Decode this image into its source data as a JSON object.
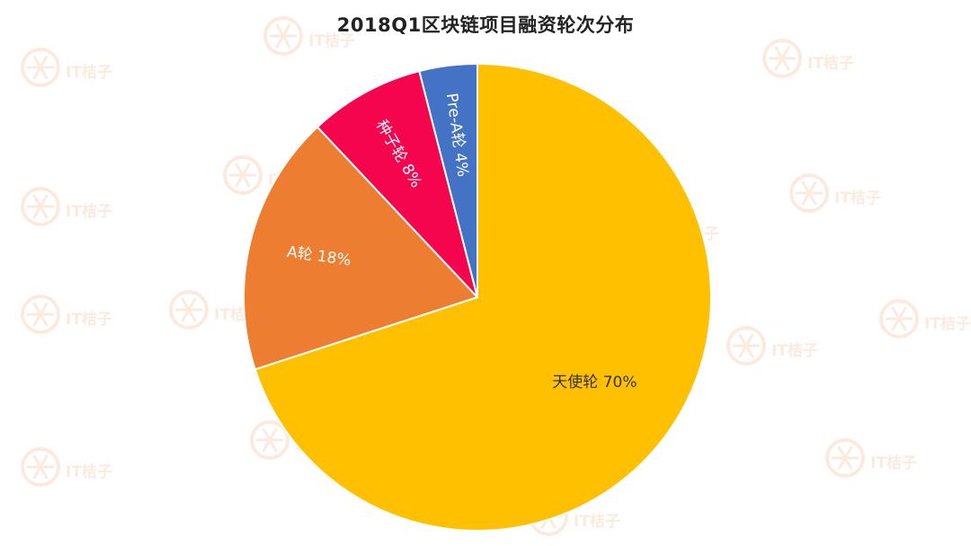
{
  "title": "2018Q1区块链项目融资轮次分布",
  "watermark": {
    "text": "IT桔子",
    "color": "#fbd9c4"
  },
  "chart_data": {
    "type": "pie",
    "title": "2018Q1区块链项目融资轮次分布",
    "start_angle_deg": 0,
    "direction": "clockwise",
    "slices": [
      {
        "label": "天使轮",
        "value": 70,
        "display": "天使轮 70%",
        "color": "#ffc000",
        "label_color": "#333333",
        "label_rotation": 0
      },
      {
        "label": "A轮",
        "value": 18,
        "display": "A轮 18%",
        "color": "#ed7d31",
        "label_color": "#ffffff",
        "label_rotation": 8
      },
      {
        "label": "种子轮",
        "value": 8,
        "display": "种子轮 8%",
        "color": "#f5054d",
        "label_color": "#ffffff",
        "label_rotation": 60
      },
      {
        "label": "Pre-A轮",
        "value": 4,
        "display": "Pre-A轮 4%",
        "color": "#4472c4",
        "label_color": "#ffffff",
        "label_rotation": 82
      }
    ]
  }
}
